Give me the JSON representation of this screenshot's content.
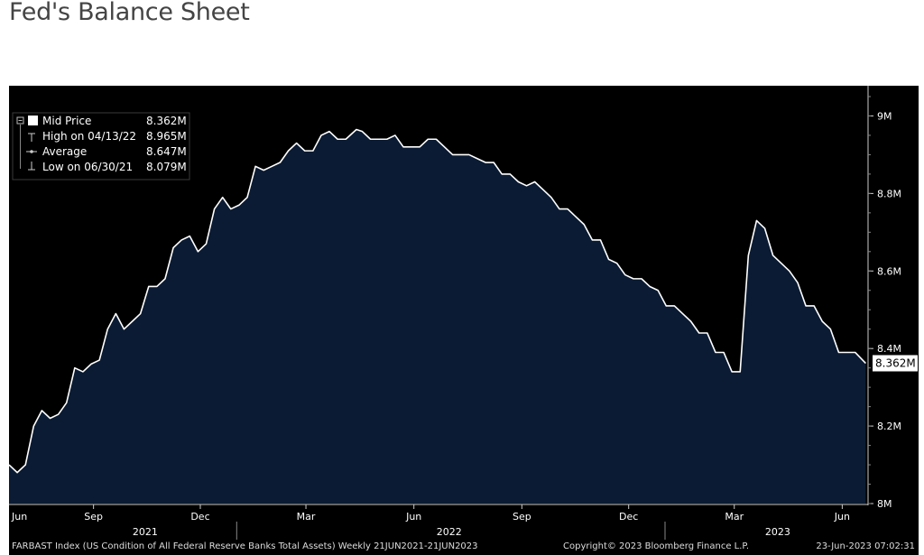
{
  "page": {
    "title": "Fed's Balance Sheet"
  },
  "legend": {
    "series_label": "Mid Price",
    "series_value": "8.362M",
    "high_label": "High on 04/13/22",
    "high_value": "8.965M",
    "average_label": "Average",
    "average_value": "8.647M",
    "low_label": "Low on 06/30/21",
    "low_value": "8.079M"
  },
  "footer": {
    "left": "FARBAST Index (US Condition of All Federal Reserve Banks Total Assets)  Weekly 21JUN2021-21JUN2023",
    "center": "Copyright© 2023 Bloomberg Finance L.P.",
    "right": "23-Jun-2023 07:02:31"
  },
  "colors": {
    "background": "#000000",
    "area_fill": "#0b1b33",
    "line": "#ffffff",
    "text": "#ffffff"
  },
  "chart_data": {
    "type": "area",
    "title": "",
    "xlabel": "",
    "ylabel": "",
    "ylim": [
      8.0,
      9.05
    ],
    "y_unit": "M",
    "y_ticks": [
      {
        "value": 8.0,
        "label": "8M"
      },
      {
        "value": 8.2,
        "label": "8.2M"
      },
      {
        "value": 8.4,
        "label": "8.4M"
      },
      {
        "value": 8.6,
        "label": "8.6M"
      },
      {
        "value": 8.8,
        "label": "8.8M"
      },
      {
        "value": 9.0,
        "label": "9M"
      }
    ],
    "x_start": "2021-06-21",
    "x_end": "2023-06-23",
    "x_ticks": [
      {
        "date": "2021-06-01",
        "label": "Jun"
      },
      {
        "date": "2021-09-01",
        "label": "Sep"
      },
      {
        "date": "2021-12-01",
        "label": "Dec"
      },
      {
        "date": "2022-03-01",
        "label": "Mar"
      },
      {
        "date": "2022-06-01",
        "label": "Jun"
      },
      {
        "date": "2022-09-01",
        "label": "Sep"
      },
      {
        "date": "2022-12-01",
        "label": "Dec"
      },
      {
        "date": "2023-03-01",
        "label": "Mar"
      },
      {
        "date": "2023-06-01",
        "label": "Jun"
      }
    ],
    "year_labels": [
      {
        "date": "2021-10-15",
        "label": "2021"
      },
      {
        "date": "2022-07-01",
        "label": "2022"
      },
      {
        "date": "2023-04-07",
        "label": "2023"
      }
    ],
    "year_dividers": [
      "2022-01-01",
      "2023-01-01"
    ],
    "last_value_label": "8.362M",
    "series": [
      {
        "name": "Mid Price",
        "points": [
          [
            "2021-06-21",
            8.1
          ],
          [
            "2021-06-28",
            8.08
          ],
          [
            "2021-07-05",
            8.1
          ],
          [
            "2021-07-12",
            8.2
          ],
          [
            "2021-07-19",
            8.24
          ],
          [
            "2021-07-26",
            8.22
          ],
          [
            "2021-08-02",
            8.23
          ],
          [
            "2021-08-09",
            8.26
          ],
          [
            "2021-08-16",
            8.35
          ],
          [
            "2021-08-23",
            8.34
          ],
          [
            "2021-08-30",
            8.36
          ],
          [
            "2021-09-06",
            8.37
          ],
          [
            "2021-09-13",
            8.45
          ],
          [
            "2021-09-20",
            8.49
          ],
          [
            "2021-09-27",
            8.45
          ],
          [
            "2021-10-04",
            8.47
          ],
          [
            "2021-10-11",
            8.49
          ],
          [
            "2021-10-18",
            8.56
          ],
          [
            "2021-10-25",
            8.56
          ],
          [
            "2021-11-01",
            8.58
          ],
          [
            "2021-11-08",
            8.66
          ],
          [
            "2021-11-15",
            8.68
          ],
          [
            "2021-11-22",
            8.69
          ],
          [
            "2021-11-29",
            8.65
          ],
          [
            "2021-12-06",
            8.67
          ],
          [
            "2021-12-13",
            8.76
          ],
          [
            "2021-12-20",
            8.79
          ],
          [
            "2021-12-27",
            8.76
          ],
          [
            "2022-01-03",
            8.77
          ],
          [
            "2022-01-10",
            8.79
          ],
          [
            "2022-01-17",
            8.87
          ],
          [
            "2022-01-24",
            8.86
          ],
          [
            "2022-01-31",
            8.87
          ],
          [
            "2022-02-07",
            8.88
          ],
          [
            "2022-02-14",
            8.91
          ],
          [
            "2022-02-21",
            8.93
          ],
          [
            "2022-02-28",
            8.91
          ],
          [
            "2022-03-07",
            8.91
          ],
          [
            "2022-03-14",
            8.95
          ],
          [
            "2022-03-21",
            8.96
          ],
          [
            "2022-03-28",
            8.94
          ],
          [
            "2022-04-04",
            8.94
          ],
          [
            "2022-04-13",
            8.965
          ],
          [
            "2022-04-18",
            8.96
          ],
          [
            "2022-04-25",
            8.94
          ],
          [
            "2022-05-02",
            8.94
          ],
          [
            "2022-05-09",
            8.94
          ],
          [
            "2022-05-16",
            8.95
          ],
          [
            "2022-05-23",
            8.92
          ],
          [
            "2022-05-30",
            8.92
          ],
          [
            "2022-06-06",
            8.92
          ],
          [
            "2022-06-13",
            8.94
          ],
          [
            "2022-06-20",
            8.94
          ],
          [
            "2022-06-27",
            8.92
          ],
          [
            "2022-07-04",
            8.9
          ],
          [
            "2022-07-11",
            8.9
          ],
          [
            "2022-07-18",
            8.9
          ],
          [
            "2022-07-25",
            8.89
          ],
          [
            "2022-08-01",
            8.88
          ],
          [
            "2022-08-08",
            8.88
          ],
          [
            "2022-08-15",
            8.85
          ],
          [
            "2022-08-22",
            8.85
          ],
          [
            "2022-08-29",
            8.83
          ],
          [
            "2022-09-05",
            8.82
          ],
          [
            "2022-09-12",
            8.83
          ],
          [
            "2022-09-19",
            8.81
          ],
          [
            "2022-09-26",
            8.79
          ],
          [
            "2022-10-03",
            8.76
          ],
          [
            "2022-10-10",
            8.76
          ],
          [
            "2022-10-17",
            8.74
          ],
          [
            "2022-10-24",
            8.72
          ],
          [
            "2022-10-31",
            8.68
          ],
          [
            "2022-11-07",
            8.68
          ],
          [
            "2022-11-14",
            8.63
          ],
          [
            "2022-11-21",
            8.62
          ],
          [
            "2022-11-28",
            8.59
          ],
          [
            "2022-12-05",
            8.58
          ],
          [
            "2022-12-12",
            8.58
          ],
          [
            "2022-12-19",
            8.56
          ],
          [
            "2022-12-26",
            8.55
          ],
          [
            "2023-01-02",
            8.51
          ],
          [
            "2023-01-09",
            8.51
          ],
          [
            "2023-01-16",
            8.49
          ],
          [
            "2023-01-23",
            8.47
          ],
          [
            "2023-01-30",
            8.44
          ],
          [
            "2023-02-06",
            8.44
          ],
          [
            "2023-02-13",
            8.39
          ],
          [
            "2023-02-20",
            8.39
          ],
          [
            "2023-02-27",
            8.34
          ],
          [
            "2023-03-06",
            8.34
          ],
          [
            "2023-03-13",
            8.64
          ],
          [
            "2023-03-20",
            8.73
          ],
          [
            "2023-03-27",
            8.71
          ],
          [
            "2023-04-03",
            8.64
          ],
          [
            "2023-04-10",
            8.62
          ],
          [
            "2023-04-17",
            8.6
          ],
          [
            "2023-04-24",
            8.57
          ],
          [
            "2023-05-01",
            8.51
          ],
          [
            "2023-05-08",
            8.51
          ],
          [
            "2023-05-15",
            8.47
          ],
          [
            "2023-05-22",
            8.45
          ],
          [
            "2023-05-29",
            8.39
          ],
          [
            "2023-06-05",
            8.39
          ],
          [
            "2023-06-12",
            8.39
          ],
          [
            "2023-06-21",
            8.362
          ]
        ]
      }
    ]
  }
}
